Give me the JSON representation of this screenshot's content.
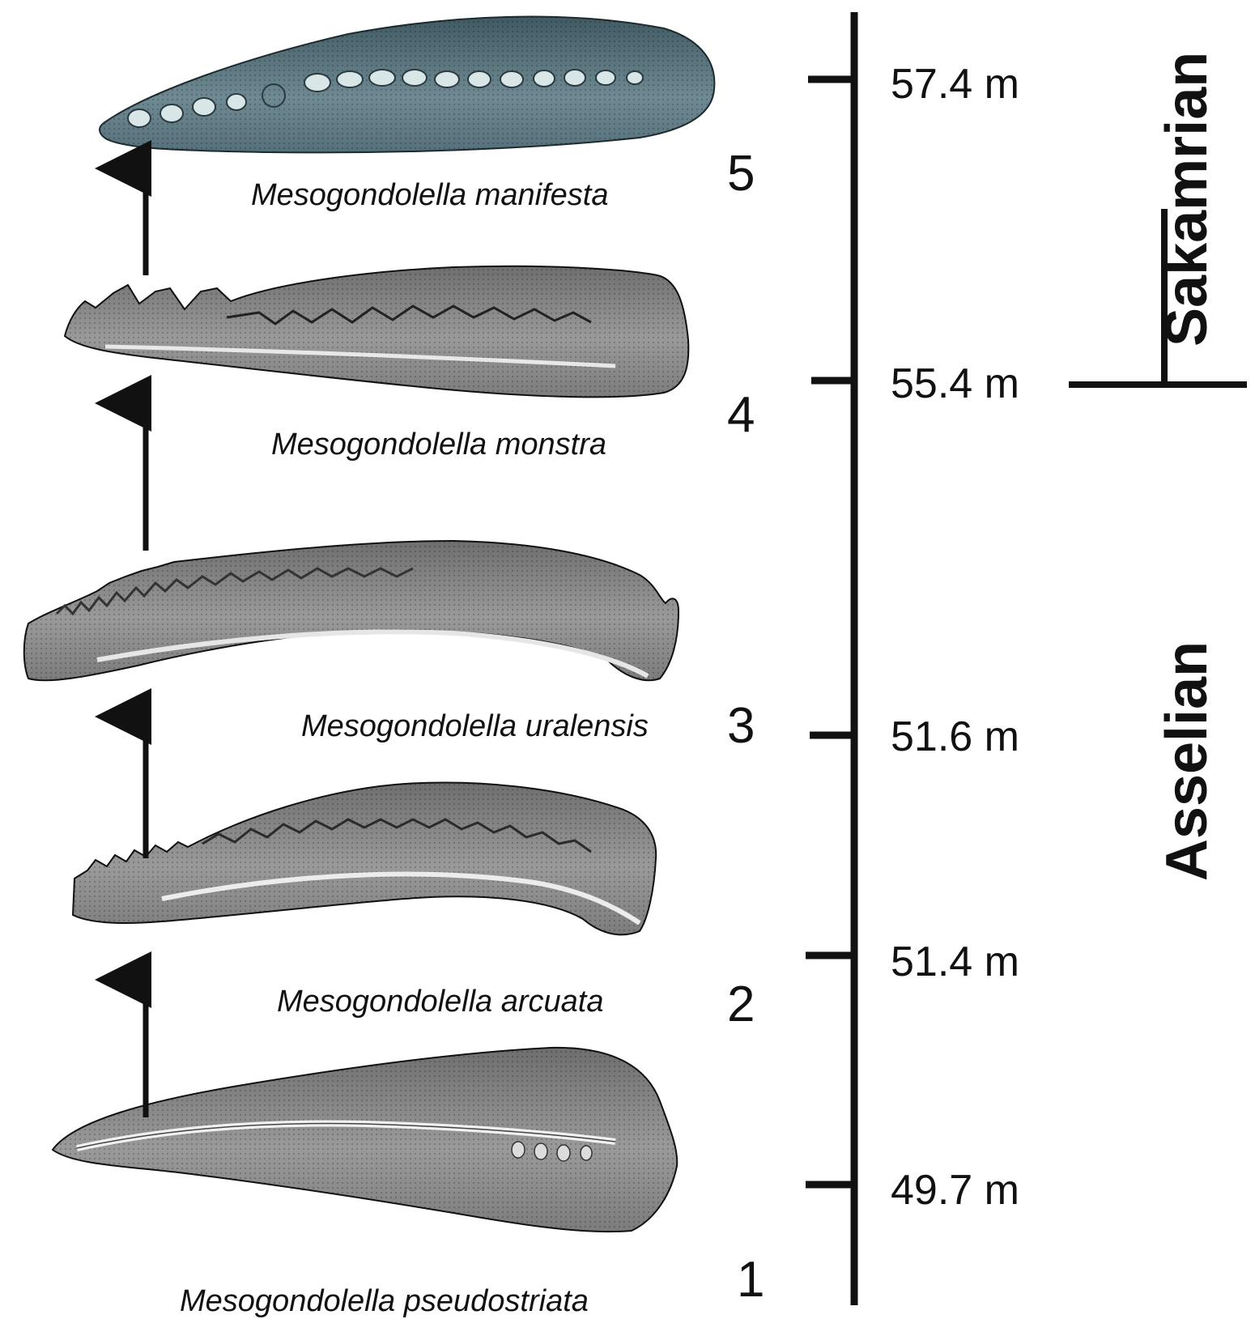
{
  "specimens": [
    {
      "id": 5,
      "name": "Mesogondolella manifesta",
      "number": "5"
    },
    {
      "id": 4,
      "name": "Mesogondolella monstra",
      "number": "4"
    },
    {
      "id": 3,
      "name": "Mesogondolella uralensis",
      "number": "3"
    },
    {
      "id": 2,
      "name": "Mesogondolella arcuata",
      "number": "2"
    },
    {
      "id": 1,
      "name": "Mesogondolella pseudostriata",
      "number": "1"
    }
  ],
  "depths": [
    "57.4 m",
    "55.4 m",
    "51.6 m",
    "51.4 m",
    "49.7 m"
  ],
  "stages": {
    "upper": "Sakamrian",
    "lower": "Asselian"
  },
  "colors": {
    "ink": "#111111",
    "specimen_blue": "#6f8a93",
    "specimen_gray": "#8a8a8a"
  }
}
